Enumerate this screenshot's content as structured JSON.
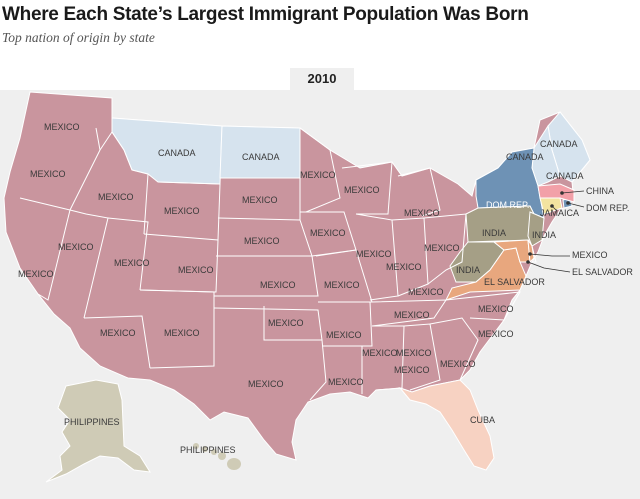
{
  "header": {
    "title": "Where Each State’s Largest Immigrant Population Was Born",
    "subtitle": "Top nation of origin by state",
    "year": "2010"
  },
  "colors": {
    "mexico": "#c9959e",
    "canada": "#d6e3ee",
    "dom_rep": "#6e92b5",
    "india": "#a59f86",
    "el_salvador": "#e8a77e",
    "china": "#f2a0a8",
    "jamaica": "#f3e3a0",
    "cuba": "#f7d2c2",
    "philippines": "#cfcbb6"
  },
  "labels": {
    "mexico": "MEXICO",
    "canada": "CANADA",
    "dom_rep": "DOM REP.",
    "india": "INDIA",
    "el_salvador": "EL SALVADOR",
    "china": "CHINA",
    "jamaica": "JAMAICA",
    "cuba": "CUBA",
    "philippines": "PHILIPPINES"
  }
}
